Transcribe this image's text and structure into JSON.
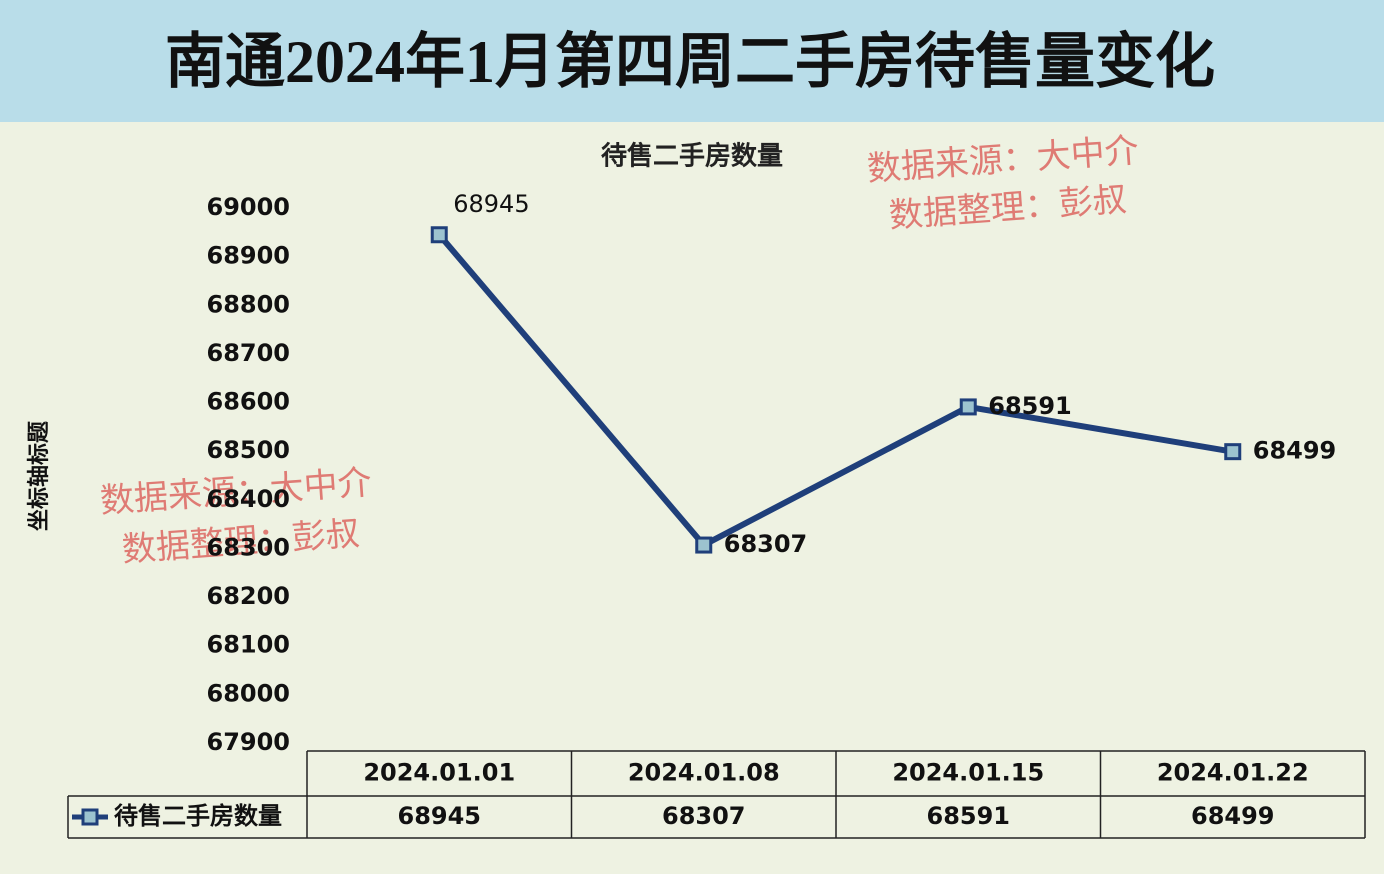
{
  "chart_data": {
    "type": "line",
    "title": "南通2024年1月第四周二手房待售量变化",
    "subtitle": "待售二手房数量",
    "y_label": "坐标轴标题",
    "annotations": [
      "数据来源：大中介",
      "数据整理：彭叔"
    ],
    "categories": [
      "2024.01.01",
      "2024.01.08",
      "2024.01.15",
      "2024.01.22"
    ],
    "series": [
      {
        "name": "待售二手房数量",
        "color": "#1f3f7a",
        "values": [
          68945,
          68307,
          68591,
          68499
        ]
      }
    ],
    "ylim": [
      67900,
      69000
    ],
    "yticks": [
      67900,
      68000,
      68100,
      68200,
      68300,
      68400,
      68500,
      68600,
      68700,
      68800,
      68900,
      69000
    ],
    "grid": false
  }
}
